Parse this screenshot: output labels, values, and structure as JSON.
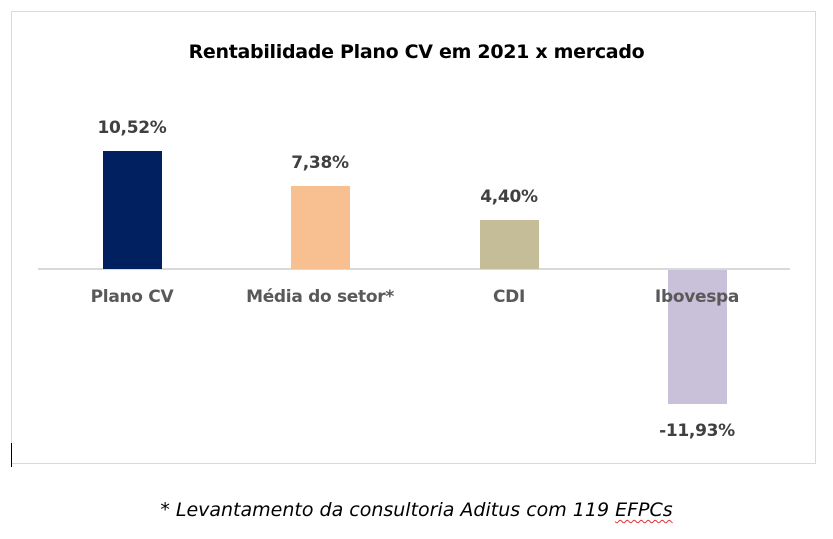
{
  "chart_data": {
    "type": "bar",
    "title": "Rentabilidade Plano CV em 2021 x mercado",
    "categories": [
      "Plano CV",
      "Média do setor*",
      "CDI",
      "Ibovespa"
    ],
    "values": [
      10.52,
      7.38,
      4.4,
      -11.93
    ],
    "value_labels": [
      "10,52%",
      "7,38%",
      "4,40%",
      "-11,93%"
    ],
    "colors": [
      "#002060",
      "#F8C090",
      "#C4BD97",
      "#C9C0DA"
    ],
    "xlabel": "",
    "ylabel": "",
    "grid": false,
    "legend": null,
    "ylim": [
      -12,
      11
    ],
    "footnote": "* Levantamento da consultoria Aditus com 119 EFPCs"
  },
  "footnote": {
    "prefix": "* Levantamento da consultoria Aditus com 119 ",
    "flagged_word": "EFPCs"
  }
}
